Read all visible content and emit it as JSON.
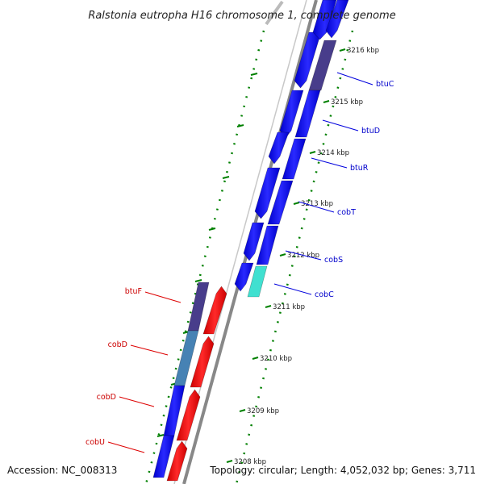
{
  "title": "Ralstonia eutropha H16 chromosome 1, complete genome",
  "footer": {
    "accession": "Accession: NC_008313",
    "topology": "Topology: circular; Length: 4,052,032 bp; Genes: 3,711"
  },
  "colors": {
    "forward_gene": "#0000ff",
    "reverse_gene": "#ff0000",
    "btu_gene": "#483d8b",
    "cobD_gene": "#4682b4",
    "cobC_gene": "#40e0d0",
    "backbone": "#888888",
    "tick": "#008000",
    "forward_label": "#0000cc",
    "reverse_label": "#cc0000"
  },
  "ticks": [
    {
      "label": "3216 kbp"
    },
    {
      "label": "3215 kbp"
    },
    {
      "label": "3214 kbp"
    },
    {
      "label": "3213 kbp"
    },
    {
      "label": "3212 kbp"
    },
    {
      "label": "3211 kbp"
    },
    {
      "label": "3210 kbp"
    },
    {
      "label": "3209 kbp"
    },
    {
      "label": "3208 kbp"
    }
  ],
  "gene_labels": {
    "forward": [
      {
        "name": "btuC"
      },
      {
        "name": "btuD"
      },
      {
        "name": "btuR"
      },
      {
        "name": "cobT"
      },
      {
        "name": "cobS"
      },
      {
        "name": "cobC"
      }
    ],
    "reverse": [
      {
        "name": "btuF"
      },
      {
        "name": "cobD"
      },
      {
        "name": "cobD"
      },
      {
        "name": "cobU"
      }
    ]
  }
}
